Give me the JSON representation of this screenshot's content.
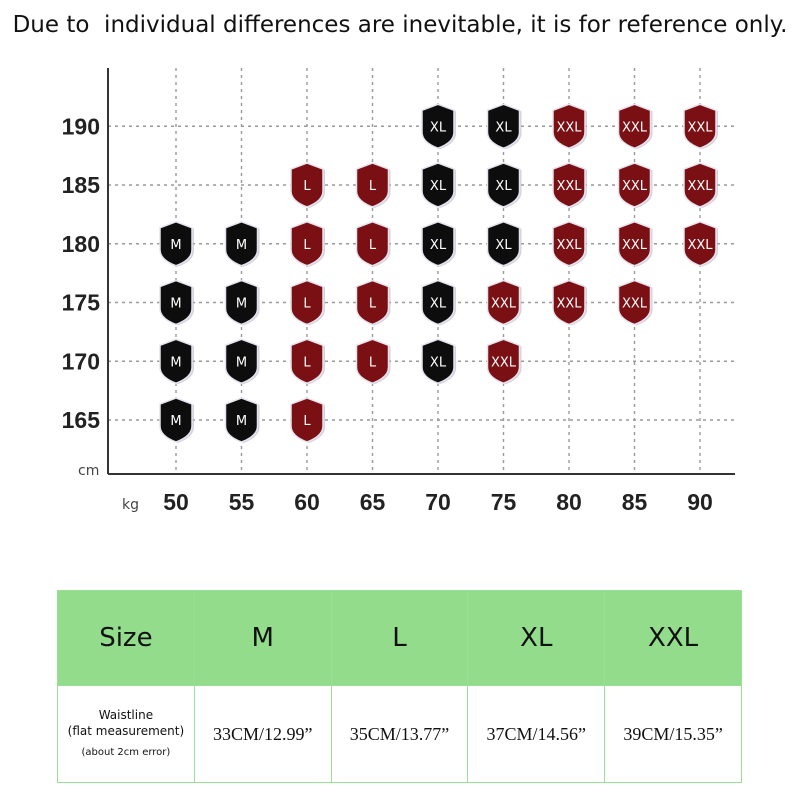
{
  "header_note": "Due to  individual differences are inevitable, it is for reference only.",
  "chart_data": {
    "type": "scatter",
    "title": "",
    "xlabel": "kg",
    "ylabel": "cm",
    "x_ticks": [
      50,
      55,
      60,
      65,
      70,
      75,
      80,
      85,
      90
    ],
    "y_ticks": [
      165,
      170,
      175,
      180,
      185,
      190
    ],
    "xlim": [
      45,
      94
    ],
    "ylim": [
      161,
      196
    ],
    "grid": true,
    "size_colors": {
      "M": "#0d0d0d",
      "L": "#7a0f14",
      "XL": "#0d0d0d",
      "XXL": "#7a0f14"
    },
    "points": [
      {
        "height": 165,
        "weight": 50,
        "size": "M"
      },
      {
        "height": 165,
        "weight": 55,
        "size": "M"
      },
      {
        "height": 165,
        "weight": 60,
        "size": "L"
      },
      {
        "height": 170,
        "weight": 50,
        "size": "M"
      },
      {
        "height": 170,
        "weight": 55,
        "size": "M"
      },
      {
        "height": 170,
        "weight": 60,
        "size": "L"
      },
      {
        "height": 170,
        "weight": 65,
        "size": "L"
      },
      {
        "height": 170,
        "weight": 70,
        "size": "XL"
      },
      {
        "height": 170,
        "weight": 75,
        "size": "XXL"
      },
      {
        "height": 175,
        "weight": 50,
        "size": "M"
      },
      {
        "height": 175,
        "weight": 55,
        "size": "M"
      },
      {
        "height": 175,
        "weight": 60,
        "size": "L"
      },
      {
        "height": 175,
        "weight": 65,
        "size": "L"
      },
      {
        "height": 175,
        "weight": 70,
        "size": "XL"
      },
      {
        "height": 175,
        "weight": 75,
        "size": "XXL"
      },
      {
        "height": 175,
        "weight": 80,
        "size": "XXL"
      },
      {
        "height": 175,
        "weight": 85,
        "size": "XXL"
      },
      {
        "height": 180,
        "weight": 50,
        "size": "M"
      },
      {
        "height": 180,
        "weight": 55,
        "size": "M"
      },
      {
        "height": 180,
        "weight": 60,
        "size": "L"
      },
      {
        "height": 180,
        "weight": 65,
        "size": "L"
      },
      {
        "height": 180,
        "weight": 70,
        "size": "XL"
      },
      {
        "height": 180,
        "weight": 75,
        "size": "XL"
      },
      {
        "height": 180,
        "weight": 80,
        "size": "XXL"
      },
      {
        "height": 180,
        "weight": 85,
        "size": "XXL"
      },
      {
        "height": 180,
        "weight": 90,
        "size": "XXL"
      },
      {
        "height": 185,
        "weight": 60,
        "size": "L"
      },
      {
        "height": 185,
        "weight": 65,
        "size": "L"
      },
      {
        "height": 185,
        "weight": 70,
        "size": "XL"
      },
      {
        "height": 185,
        "weight": 75,
        "size": "XL"
      },
      {
        "height": 185,
        "weight": 80,
        "size": "XXL"
      },
      {
        "height": 185,
        "weight": 85,
        "size": "XXL"
      },
      {
        "height": 185,
        "weight": 90,
        "size": "XXL"
      },
      {
        "height": 190,
        "weight": 70,
        "size": "XL"
      },
      {
        "height": 190,
        "weight": 75,
        "size": "XL"
      },
      {
        "height": 190,
        "weight": 80,
        "size": "XXL"
      },
      {
        "height": 190,
        "weight": 85,
        "size": "XXL"
      },
      {
        "height": 190,
        "weight": 90,
        "size": "XXL"
      }
    ]
  },
  "size_table": {
    "header_label": "Size",
    "sizes": [
      "M",
      "L",
      "XL",
      "XXL"
    ],
    "row_label_line1": "Waistline",
    "row_label_line2": "(flat measurement)",
    "row_label_line3": "(about 2cm error)",
    "waistline_values": [
      "33CM/12.99”",
      "35CM/13.77”",
      "37CM/14.56”",
      "39CM/15.35”"
    ]
  }
}
